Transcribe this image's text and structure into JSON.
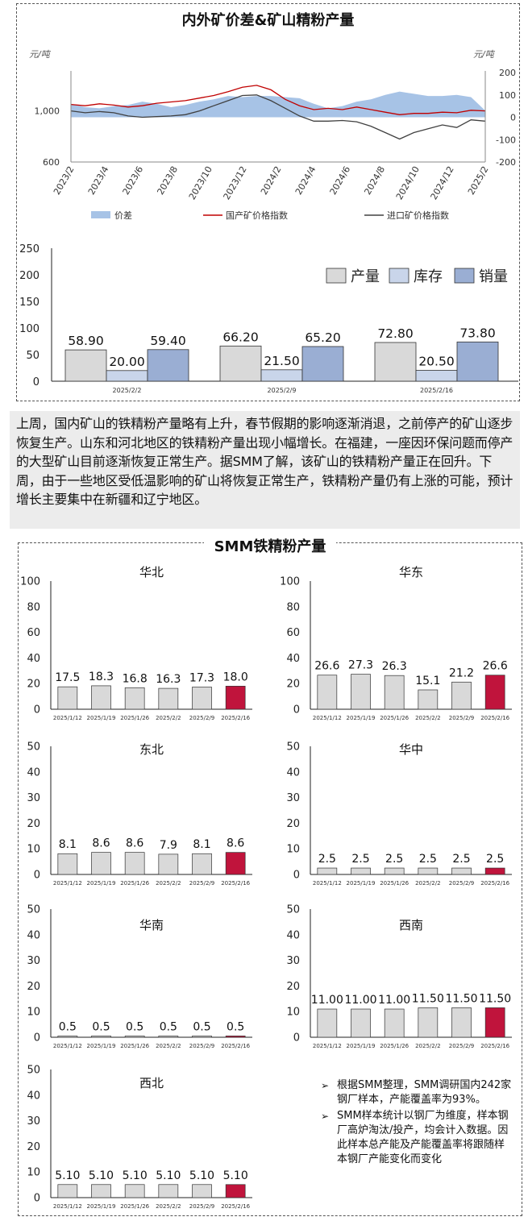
{
  "top_panel": {
    "title": "内外矿价差&矿山精粉产量"
  },
  "paragraph": "上周，国内矿山的铁精粉产量略有上升，春节假期的影响逐渐消退，之前停产的矿山逐步恢复生产。山东和河北地区的铁精粉产量出现小幅增长。在福建，一座因环保问题而停产的大型矿山目前逐渐恢复正常生产。据SMM了解，该矿山的铁精粉产量正在回升。下周，由于一些地区受低温影响的矿山将恢复正常生产，铁精粉产量仍有上涨的可能，预计增长主要集中在新疆和辽宁地区。",
  "bottom_panel": {
    "title": "SMM铁精粉产量"
  },
  "notes": [
    "根据SMM整理，SMM调研国内242家钢厂样本，产能覆盖率为93%。",
    "SMM样本统计以钢厂为维度，样本钢厂高炉淘汰/投产，均会计入数据。因此样本总产能及产能覆盖率将跟随样本钢厂产能变化而变化"
  ],
  "colors": {
    "spread_fill": "#a7c3e6",
    "domestic_line": "#c00000",
    "import_line": "#404040",
    "bar_gray": "#d9d9d9",
    "bar_light_blue": "#c9d5ea",
    "bar_blue": "#9aaed3",
    "bar_highlight": "#c0143c"
  },
  "chart_data": [
    {
      "type": "line",
      "left_unit": "元/吨",
      "right_unit": "元/吨",
      "y_left_ticks": [
        "600",
        "1,000"
      ],
      "y_left_range": [
        600,
        1300
      ],
      "y_right_ticks": [
        "200",
        "100",
        "0",
        "-100",
        "-200"
      ],
      "y_right_range": [
        -200,
        200
      ],
      "x_ticks": [
        "2023/2",
        "2023/4",
        "2023/6",
        "2023/8",
        "2023/10",
        "2023/12",
        "2024/2",
        "2024/4",
        "2024/6",
        "2024/8",
        "2024/10",
        "2024/12",
        "2025/2"
      ],
      "series": [
        {
          "name": "价差",
          "axis": "right",
          "style": "area",
          "values": [
            60,
            45,
            40,
            50,
            55,
            70,
            60,
            45,
            55,
            70,
            80,
            95,
            90,
            95,
            95,
            90,
            85,
            60,
            40,
            50,
            70,
            80,
            100,
            115,
            105,
            95,
            95,
            100,
            90,
            30
          ]
        },
        {
          "name": "国产矿价格指数",
          "axis": "left",
          "style": "line",
          "values": [
            1050,
            1040,
            1055,
            1045,
            1030,
            1040,
            1060,
            1070,
            1080,
            1100,
            1120,
            1150,
            1185,
            1200,
            1165,
            1090,
            1040,
            1010,
            1020,
            1010,
            1030,
            1010,
            990,
            970,
            980,
            980,
            990,
            985,
            1005,
            1000
          ]
        },
        {
          "name": "进口矿价格指数",
          "axis": "left",
          "style": "line",
          "values": [
            1000,
            985,
            995,
            985,
            960,
            950,
            955,
            960,
            970,
            1000,
            1040,
            1080,
            1120,
            1125,
            1080,
            1020,
            960,
            920,
            920,
            925,
            915,
            880,
            830,
            780,
            830,
            860,
            890,
            870,
            930,
            920
          ]
        }
      ]
    },
    {
      "type": "bar",
      "y_range": [
        0,
        250
      ],
      "y_ticks": [
        "0",
        "50",
        "100",
        "150",
        "200",
        "250"
      ],
      "categories": [
        "2025/2/2",
        "2025/2/9",
        "2025/2/16"
      ],
      "series": [
        {
          "name": "产量",
          "values": [
            58.9,
            66.2,
            72.8
          ],
          "labels": [
            "58.90",
            "66.20",
            "72.80"
          ]
        },
        {
          "name": "库存",
          "values": [
            20.0,
            21.5,
            20.5
          ],
          "labels": [
            "20.00",
            "21.50",
            "20.50"
          ]
        },
        {
          "name": "销量",
          "values": [
            59.4,
            65.2,
            73.8
          ],
          "labels": [
            "59.40",
            "65.20",
            "73.80"
          ]
        }
      ]
    },
    {
      "type": "bar",
      "title": "华北",
      "y_range": [
        0,
        100
      ],
      "y_ticks": [
        "0",
        "20",
        "40",
        "60",
        "80",
        "100"
      ],
      "categories": [
        "2025/1/12",
        "2025/1/19",
        "2025/1/26",
        "2025/2/2",
        "2025/2/9",
        "2025/2/16"
      ],
      "values": [
        17.5,
        18.3,
        16.8,
        16.3,
        17.3,
        18.0
      ],
      "labels": [
        "17.5",
        "18.3",
        "16.8",
        "16.3",
        "17.3",
        "18.0"
      ]
    },
    {
      "type": "bar",
      "title": "华东",
      "y_range": [
        0,
        100
      ],
      "y_ticks": [
        "0",
        "20",
        "40",
        "60",
        "80",
        "100"
      ],
      "categories": [
        "2025/1/12",
        "2025/1/19",
        "2025/1/26",
        "2025/2/2",
        "2025/2/9",
        "2025/2/16"
      ],
      "values": [
        26.6,
        27.3,
        26.3,
        15.1,
        21.2,
        26.6
      ],
      "labels": [
        "26.6",
        "27.3",
        "26.3",
        "15.1",
        "21.2",
        "26.6"
      ]
    },
    {
      "type": "bar",
      "title": "东北",
      "y_range": [
        0,
        50
      ],
      "y_ticks": [
        "0",
        "10",
        "20",
        "30",
        "40",
        "50"
      ],
      "categories": [
        "2025/1/12",
        "2025/1/19",
        "2025/1/26",
        "2025/2/2",
        "2025/2/9",
        "2025/2/16"
      ],
      "values": [
        8.1,
        8.6,
        8.6,
        7.9,
        8.1,
        8.6
      ],
      "labels": [
        "8.1",
        "8.6",
        "8.6",
        "7.9",
        "8.1",
        "8.6"
      ]
    },
    {
      "type": "bar",
      "title": "华中",
      "y_range": [
        0,
        50
      ],
      "y_ticks": [
        "0",
        "10",
        "20",
        "30",
        "40",
        "50"
      ],
      "categories": [
        "2025/1/12",
        "2025/1/19",
        "2025/1/26",
        "2025/2/2",
        "2025/2/9",
        "2025/2/16"
      ],
      "values": [
        2.5,
        2.5,
        2.5,
        2.5,
        2.5,
        2.5
      ],
      "labels": [
        "2.5",
        "2.5",
        "2.5",
        "2.5",
        "2.5",
        "2.5"
      ]
    },
    {
      "type": "bar",
      "title": "华南",
      "y_range": [
        0,
        50
      ],
      "y_ticks": [
        "0",
        "10",
        "20",
        "30",
        "40",
        "50"
      ],
      "categories": [
        "2025/1/12",
        "2025/1/19",
        "2025/1/26",
        "2025/2/2",
        "2025/2/9",
        "2025/2/16"
      ],
      "values": [
        0.5,
        0.5,
        0.5,
        0.5,
        0.5,
        0.5
      ],
      "labels": [
        "0.5",
        "0.5",
        "0.5",
        "0.5",
        "0.5",
        "0.5"
      ]
    },
    {
      "type": "bar",
      "title": "西南",
      "y_range": [
        0,
        50
      ],
      "y_ticks": [
        "0",
        "10",
        "20",
        "30",
        "40",
        "50"
      ],
      "categories": [
        "2025/1/12",
        "2025/1/19",
        "2025/1/26",
        "2025/2/2",
        "2025/2/9",
        "2025/2/16"
      ],
      "values": [
        11.0,
        11.0,
        11.0,
        11.5,
        11.5,
        11.5
      ],
      "labels": [
        "11.00",
        "11.00",
        "11.00",
        "11.50",
        "11.50",
        "11.50"
      ]
    },
    {
      "type": "bar",
      "title": "西北",
      "y_range": [
        0,
        50
      ],
      "y_ticks": [
        "0",
        "10",
        "20",
        "30",
        "40",
        "50"
      ],
      "categories": [
        "2025/1/12",
        "2025/1/19",
        "2025/1/26",
        "2025/2/2",
        "2025/2/9",
        "2025/2/16"
      ],
      "values": [
        5.1,
        5.1,
        5.1,
        5.1,
        5.1,
        5.1
      ],
      "labels": [
        "5.10",
        "5.10",
        "5.10",
        "5.10",
        "5.10",
        "5.10"
      ]
    }
  ]
}
